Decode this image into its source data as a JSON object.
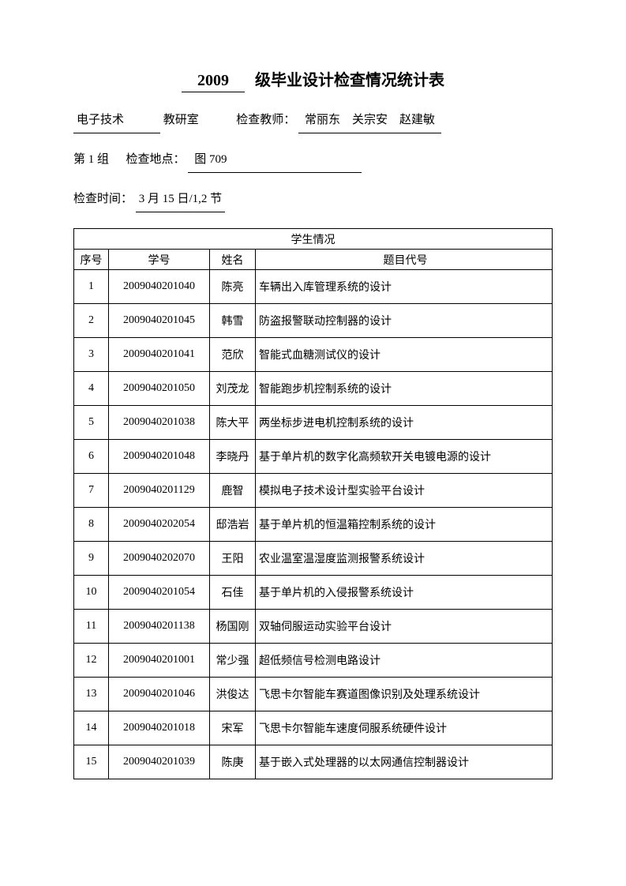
{
  "title": {
    "year": "2009",
    "suffix": "级毕业设计检查情况统计表"
  },
  "header": {
    "department": "电子技术",
    "department_suffix": "教研室",
    "teacher_label": "检查教师：",
    "teachers": "常丽东　关宗安　赵建敏",
    "group_prefix": "第",
    "group_num": "1",
    "group_suffix": "组",
    "location_label": "检查地点：",
    "location": "图 709",
    "time_label": "检查时间：",
    "time": "3 月 15 日/1,2 节"
  },
  "table": {
    "merged_header": "学生情况",
    "columns": {
      "seq": "序号",
      "id": "学号",
      "name": "姓名",
      "topic": "题目代号"
    },
    "rows": [
      {
        "seq": "1",
        "id": "2009040201040",
        "name": "陈亮",
        "topic": "车辆出入库管理系统的设计"
      },
      {
        "seq": "2",
        "id": "2009040201045",
        "name": "韩雪",
        "topic": "防盗报警联动控制器的设计"
      },
      {
        "seq": "3",
        "id": "2009040201041",
        "name": "范欣",
        "topic": "智能式血糖测试仪的设计"
      },
      {
        "seq": "4",
        "id": "2009040201050",
        "name": "刘茂龙",
        "topic": "智能跑步机控制系统的设计"
      },
      {
        "seq": "5",
        "id": "2009040201038",
        "name": "陈大平",
        "topic": "两坐标步进电机控制系统的设计"
      },
      {
        "seq": "6",
        "id": "2009040201048",
        "name": "李晓丹",
        "topic": "基于单片机的数字化高频软开关电镀电源的设计"
      },
      {
        "seq": "7",
        "id": "2009040201129",
        "name": "鹿智",
        "topic": "模拟电子技术设计型实验平台设计"
      },
      {
        "seq": "8",
        "id": "2009040202054",
        "name": "邸浩岩",
        "topic": "基于单片机的恒温箱控制系统的设计"
      },
      {
        "seq": "9",
        "id": "2009040202070",
        "name": "王阳",
        "topic": "农业温室温湿度监测报警系统设计"
      },
      {
        "seq": "10",
        "id": "2009040201054",
        "name": "石佳",
        "topic": "基于单片机的入侵报警系统设计"
      },
      {
        "seq": "11",
        "id": "2009040201138",
        "name": "杨国刚",
        "topic": "双轴伺服运动实验平台设计"
      },
      {
        "seq": "12",
        "id": "2009040201001",
        "name": "常少强",
        "topic": "超低频信号检测电路设计"
      },
      {
        "seq": "13",
        "id": "2009040201046",
        "name": "洪俊达",
        "topic": "飞思卡尔智能车赛道图像识别及处理系统设计"
      },
      {
        "seq": "14",
        "id": "2009040201018",
        "name": "宋军",
        "topic": "飞思卡尔智能车速度伺服系统硬件设计"
      },
      {
        "seq": "15",
        "id": "2009040201039",
        "name": "陈庚",
        "topic": "基于嵌入式处理器的以太网通信控制器设计"
      }
    ]
  }
}
